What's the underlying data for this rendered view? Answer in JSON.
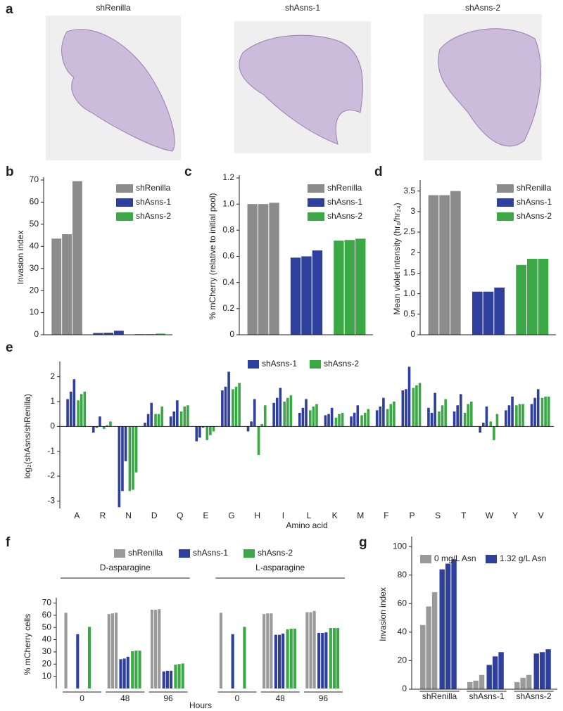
{
  "panel_a": {
    "label": "a",
    "titles": [
      "shRenilla",
      "shAsns-1",
      "shAsns-2"
    ]
  },
  "chart_data": [
    {
      "type": "bar",
      "label": "b",
      "ylabel": "Invasion index",
      "ylim": [
        0,
        70
      ],
      "yticks": [
        0,
        10,
        20,
        30,
        40,
        50,
        60,
        70
      ],
      "legend": "upper right",
      "series": [
        {
          "name": "shRenilla",
          "color": "#8c8c8c",
          "values": [
            43.5,
            45.5,
            69.5
          ]
        },
        {
          "name": "shAsns-1",
          "color": "#2e3f9e",
          "values": [
            0.8,
            0.9,
            1.8
          ]
        },
        {
          "name": "shAsns-2",
          "color": "#3aa845",
          "values": [
            0.3,
            0.3,
            0.5
          ]
        }
      ]
    },
    {
      "type": "bar",
      "label": "c",
      "ylabel": "% mCherry (relative to initial pool)",
      "ylim": [
        0,
        1.2
      ],
      "yticks": [
        0,
        0.2,
        0.4,
        0.6,
        0.8,
        {
          "value": 1,
          "label": "1.0"
        },
        1.2
      ],
      "legend": "upper right",
      "series": [
        {
          "name": "shRenilla",
          "color": "#8c8c8c",
          "values": [
            1.0,
            1.0,
            1.01
          ]
        },
        {
          "name": "shAsns-1",
          "color": "#2e3f9e",
          "values": [
            0.59,
            0.6,
            0.645
          ]
        },
        {
          "name": "shAsns-2",
          "color": "#3aa845",
          "values": [
            0.72,
            0.725,
            0.735
          ]
        }
      ]
    },
    {
      "type": "bar",
      "label": "d",
      "ylabel": "Mean violet intensity (hr₀/hr₂₄)",
      "ylim": [
        0,
        3.7
      ],
      "yticks": [
        0,
        0.5,
        {
          "value": 1,
          "label": "1.0"
        },
        1.5,
        2,
        2.5,
        3,
        3.5
      ],
      "legend": "upper right",
      "series": [
        {
          "name": "shRenilla",
          "color": "#8c8c8c",
          "values": [
            3.4,
            3.4,
            3.5
          ]
        },
        {
          "name": "shAsns-1",
          "color": "#2e3f9e",
          "values": [
            1.05,
            1.05,
            1.15
          ]
        },
        {
          "name": "shAsns-2",
          "color": "#3aa845",
          "values": [
            1.7,
            1.85,
            1.85
          ]
        }
      ]
    },
    {
      "type": "bar",
      "label": "e",
      "ylabel": "log₂(shAsns/shRenilla)",
      "xlabel": "Amino acid",
      "ylim": [
        -3.3,
        2.5
      ],
      "yticks": [
        -3,
        -2,
        -1,
        0,
        1,
        2
      ],
      "legend": "top",
      "categories": [
        "A",
        "R",
        "N",
        "D",
        "Q",
        "E",
        "G",
        "H",
        "I",
        "L",
        "K",
        "M",
        "F",
        "P",
        "S",
        "T",
        "W",
        "Y",
        "V"
      ],
      "series": [
        {
          "name": "shAsns-1",
          "color": "#2e3f9e",
          "values": [
            [
              1.1,
              1.4,
              1.9
            ],
            [
              -0.25,
              -0.05,
              0.4
            ],
            [
              -3.25,
              -2.6,
              -1.4
            ],
            [
              0.15,
              0.5,
              0.95
            ],
            [
              0.4,
              0.6,
              1.05
            ],
            [
              -0.6,
              -0.45,
              -0.05
            ],
            [
              1.45,
              1.6,
              2.2
            ],
            [
              -0.2,
              0.2,
              1.1
            ],
            [
              0.95,
              1.15,
              1.55
            ],
            [
              0.55,
              0.75,
              1.1
            ],
            [
              0.45,
              0.5,
              0.75
            ],
            [
              0.4,
              0.55,
              0.85
            ],
            [
              0.65,
              0.8,
              1.15
            ],
            [
              1.45,
              1.5,
              2.4
            ],
            [
              0.75,
              0.55,
              1.35
            ],
            [
              0.6,
              0.85,
              1.3
            ],
            [
              -0.25,
              0.15,
              0.8
            ],
            [
              0.65,
              0.85,
              1.2
            ],
            [
              0.9,
              1.15,
              1.5
            ]
          ]
        },
        {
          "name": "shAsns-2",
          "color": "#3aa845",
          "values": [
            [
              1.05,
              1.3,
              1.4
            ],
            [
              -0.1,
              0.05,
              0.2
            ],
            [
              -2.6,
              -2.55,
              -1.85
            ],
            [
              0.5,
              0.5,
              0.8
            ],
            [
              0.6,
              0.8,
              0.85
            ],
            [
              -0.55,
              -0.35,
              -0.2
            ],
            [
              1.5,
              1.6,
              1.75
            ],
            [
              -1.15,
              0.1,
              0.85
            ],
            [
              1.0,
              1.15,
              1.25
            ],
            [
              0.65,
              0.8,
              0.9
            ],
            [
              0.35,
              0.5,
              0.55
            ],
            [
              0.45,
              0.55,
              0.7
            ],
            [
              0.7,
              0.9,
              1.0
            ],
            [
              1.55,
              1.65,
              1.75
            ],
            [
              0.6,
              0.85,
              1.1
            ],
            [
              0.55,
              0.9,
              1.0
            ],
            [
              0.2,
              -0.55,
              0.5
            ],
            [
              0.85,
              0.9,
              0.9
            ],
            [
              1.15,
              1.2,
              1.2
            ]
          ]
        }
      ]
    },
    {
      "type": "bar",
      "label": "f",
      "ylabel": "% mCherry cells",
      "xlabel": "Hours",
      "ylim": [
        0,
        72
      ],
      "yticks": [
        10,
        20,
        30,
        40,
        50,
        60,
        70
      ],
      "legend": "top",
      "groups": [
        "D-asparagine",
        "L-asparagine"
      ],
      "categories": [
        "0",
        "48",
        "96"
      ],
      "series": [
        {
          "name": "shRenilla",
          "color": "#9a9a9a",
          "values": [
            [
              [
                62
              ],
              [
                61,
                61.5,
                62
              ],
              [
                64.5,
                64.5,
                65
              ]
            ],
            [
              [
                62
              ],
              [
                61,
                61.5,
                61.5
              ],
              [
                62.5,
                62.5,
                63.5
              ]
            ]
          ]
        },
        {
          "name": "shAsns-1",
          "color": "#2e3f9e",
          "values": [
            [
              [
                44.5
              ],
              [
                24,
                24.5,
                26
              ],
              [
                14,
                14.5,
                14.5
              ]
            ],
            [
              [
                44.5
              ],
              [
                44,
                44,
                45
              ],
              [
                45.5,
                45.5,
                46
              ]
            ]
          ]
        },
        {
          "name": "shAsns-2",
          "color": "#3aa845",
          "values": [
            [
              [
                50.5
              ],
              [
                30.5,
                31,
                31
              ],
              [
                19.5,
                20,
                20.5
              ]
            ],
            [
              [
                50.5
              ],
              [
                48.5,
                49,
                49
              ],
              [
                49.5,
                49.5,
                49.5
              ]
            ]
          ]
        }
      ]
    },
    {
      "type": "bar",
      "label": "g",
      "ylabel": "Invasion index",
      "ylim": [
        0,
        105
      ],
      "yticks": [
        0,
        20,
        40,
        60,
        80,
        100
      ],
      "legend": "top",
      "categories": [
        "shRenilla",
        "shAsns-1",
        "shAsns-2"
      ],
      "series": [
        {
          "name": "0 mg/L Asn",
          "color": "#9a9a9a",
          "values": [
            [
              45,
              58,
              68
            ],
            [
              5,
              6,
              10
            ],
            [
              5,
              8,
              10
            ]
          ]
        },
        {
          "name": "1.32 g/L Asn",
          "color": "#2e3f9e",
          "values": [
            [
              84,
              88,
              91
            ],
            [
              17,
              23,
              26
            ],
            [
              25,
              26,
              28
            ]
          ]
        }
      ]
    }
  ]
}
